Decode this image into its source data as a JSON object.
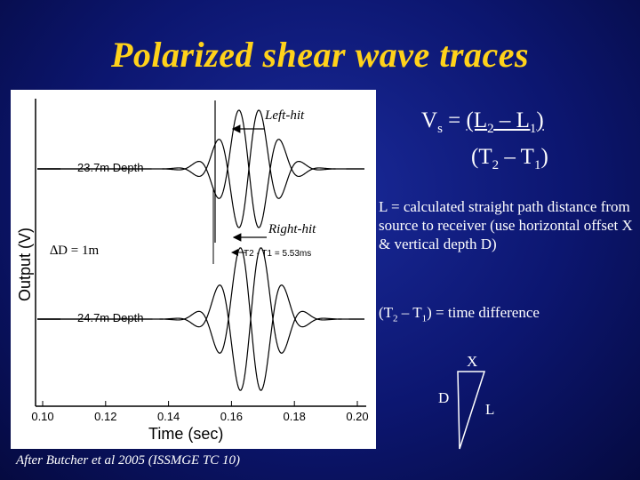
{
  "title": "Polarized shear wave traces",
  "chart_data": {
    "type": "line",
    "xlabel": "Time (sec)",
    "ylabel": "Output (V)",
    "xlim": [
      0.1,
      0.2
    ],
    "x_ticks": [
      "0.10",
      "0.12",
      "0.14",
      "0.16",
      "0.18",
      "0.20"
    ],
    "traces": [
      {
        "depth_label": "23.7m Depth",
        "annotation": "Left-hit"
      },
      {
        "depth_label": "24.7m Depth",
        "annotation": "Right-hit"
      }
    ],
    "annotations": {
      "delta_d": "∆D = 1m",
      "time_diff": "T2 - T1 = 5.53ms"
    }
  },
  "caption": "After Butcher et al 2005 (ISSMGE TC 10)",
  "formula": {
    "lhs": "V",
    "lhs_sub": "s",
    "eq": " = ",
    "num_a": "(L",
    "num_a_sub": "2",
    "num_mid": " – L",
    "num_b_sub": "1",
    "num_close": ")",
    "den_a": "(T",
    "den_a_sub": "2",
    "den_mid": " – T",
    "den_b_sub": "1",
    "den_close": ")"
  },
  "text_L": "L = calculated straight path distance from source to receiver (use horizontal offset X & vertical depth D)",
  "text_T": {
    "a": "(T",
    "a_sub": "2",
    "b": " – T",
    "b_sub": "1",
    "c": ") = time difference"
  },
  "triangle": {
    "x": "X",
    "d": "D",
    "l": "L"
  }
}
